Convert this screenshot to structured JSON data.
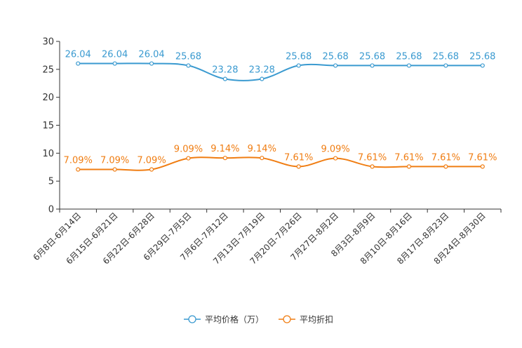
{
  "chart_data": {
    "type": "line",
    "title": "",
    "xlabel": "",
    "ylabel": "",
    "ylim": [
      0,
      30
    ],
    "yticks": [
      0,
      5,
      10,
      15,
      20,
      25,
      30
    ],
    "grid": false,
    "legend_position": "bottom-center",
    "categories": [
      "6月8日-6月14日",
      "6月15日-6月21日",
      "6月22日-6月28日",
      "6月29日-7月5日",
      "7月6日-7月12日",
      "7月13日-7月19日",
      "7月20日-7月26日",
      "7月27日-8月2日",
      "8月3日-8月9日",
      "8月10日-8月16日",
      "8月17日-8月23日",
      "8月24日-8月30日"
    ],
    "series": [
      {
        "name": "平均价格（万）",
        "color": "#3a9ad0",
        "values": [
          26.04,
          26.04,
          26.04,
          25.68,
          23.28,
          23.28,
          25.68,
          25.68,
          25.68,
          25.68,
          25.68,
          25.68
        ],
        "labels": [
          "26.04",
          "26.04",
          "26.04",
          "25.68",
          "23.28",
          "23.28",
          "25.68",
          "25.68",
          "25.68",
          "25.68",
          "25.68",
          "25.68"
        ]
      },
      {
        "name": "平均折扣",
        "color": "#f07d12",
        "values": [
          7.09,
          7.09,
          7.09,
          9.09,
          9.14,
          9.14,
          7.61,
          9.09,
          7.61,
          7.61,
          7.61,
          7.61
        ],
        "labels": [
          "7.09%",
          "7.09%",
          "7.09%",
          "9.09%",
          "9.14%",
          "9.14%",
          "7.61%",
          "9.09%",
          "7.61%",
          "7.61%",
          "7.61%",
          "7.61%"
        ]
      }
    ]
  }
}
